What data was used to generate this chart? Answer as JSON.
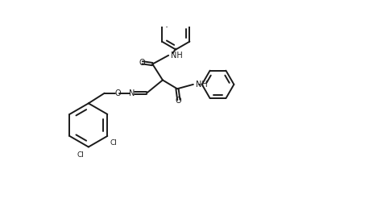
{
  "bg_color": "#ffffff",
  "line_color": "#1a1a1a",
  "line_width": 1.4,
  "figsize": [
    4.68,
    2.72
  ],
  "dpi": 100,
  "xlim": [
    0,
    100
  ],
  "ylim": [
    0,
    58
  ]
}
